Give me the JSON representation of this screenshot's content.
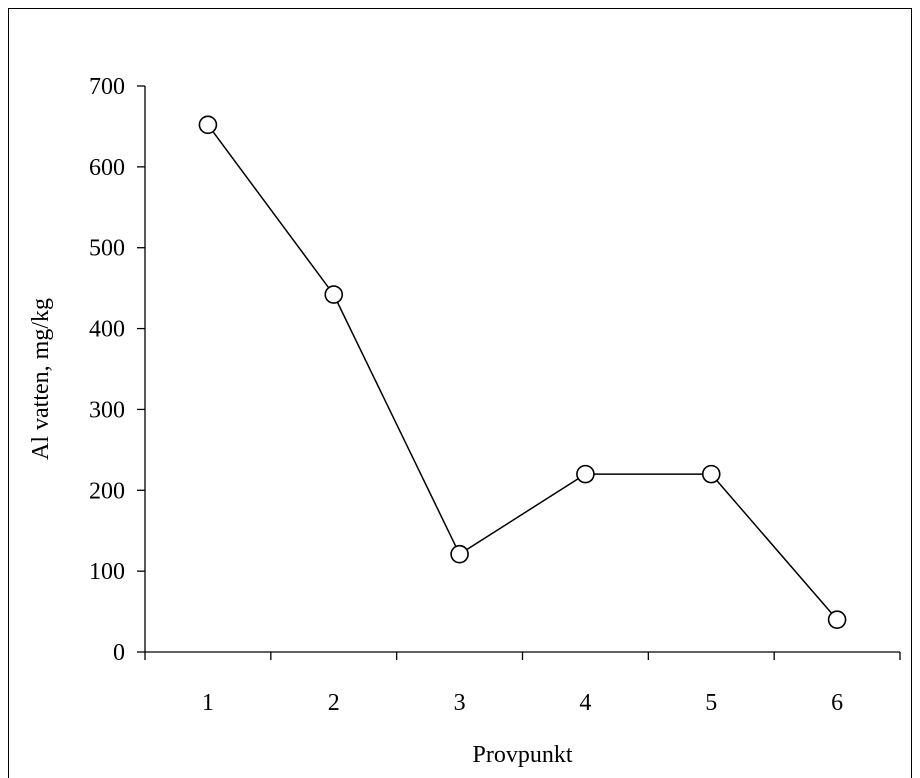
{
  "chart_data": {
    "type": "line",
    "title": "",
    "xlabel": "Provpunkt",
    "ylabel": "Al vatten, mg/kg",
    "categories": [
      "1",
      "2",
      "3",
      "4",
      "5",
      "6"
    ],
    "series": [
      {
        "values": [
          652,
          442,
          121,
          220,
          220,
          40
        ]
      }
    ],
    "ylim": [
      0,
      700
    ],
    "yticks": [
      0,
      100,
      200,
      300,
      400,
      500,
      600,
      700
    ],
    "grid": false,
    "legend": "none",
    "marker": "open-circle",
    "line_color": "#000000"
  }
}
